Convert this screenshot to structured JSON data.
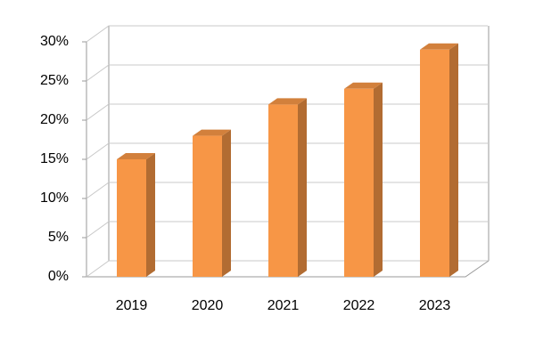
{
  "chart_data": {
    "type": "bar3d",
    "categories": [
      "2019",
      "2020",
      "2021",
      "2022",
      "2023"
    ],
    "values": [
      15,
      18,
      22,
      24,
      29
    ],
    "color": "#f79646",
    "ylim": [
      0,
      30
    ],
    "yticks": [
      {
        "value": 0,
        "label": "0%"
      },
      {
        "value": 5,
        "label": "5%"
      },
      {
        "value": 10,
        "label": "10%"
      },
      {
        "value": 15,
        "label": "15%"
      },
      {
        "value": 20,
        "label": "20%"
      },
      {
        "value": 25,
        "label": "25%"
      },
      {
        "value": 30,
        "label": "30%"
      }
    ],
    "grid": true
  }
}
